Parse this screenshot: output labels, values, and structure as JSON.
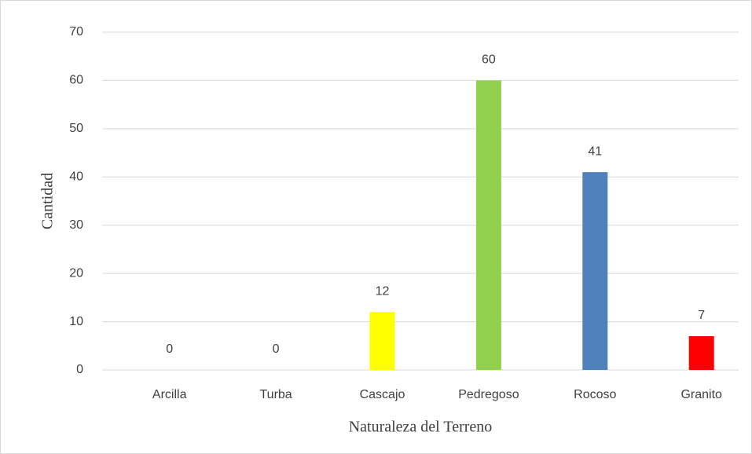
{
  "chart_data": {
    "type": "bar",
    "categories": [
      "Arcilla",
      "Turba",
      "Cascajo",
      "Pedregoso",
      "Rocoso",
      "Granito"
    ],
    "values": [
      0,
      0,
      12,
      60,
      41,
      7
    ],
    "colors": [
      "#a5a5a5",
      "#ffc000",
      "#ffff00",
      "#92d050",
      "#4f81bd",
      "#ff0000"
    ],
    "xlabel": "Naturaleza del Terreno",
    "ylabel": "Cantidad",
    "ylim": [
      0,
      70
    ],
    "yticks": [
      0,
      10,
      20,
      30,
      40,
      50,
      60,
      70
    ],
    "grid": true
  }
}
